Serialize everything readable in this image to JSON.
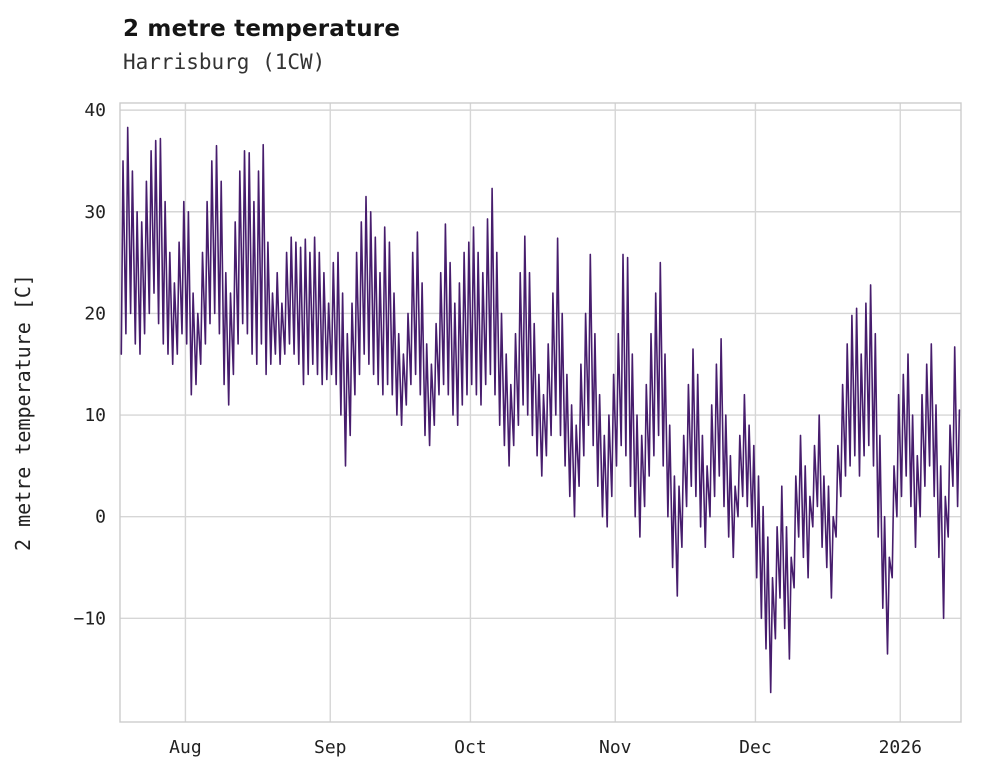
{
  "header": {
    "title": "2 metre temperature",
    "subtitle": "Harrisburg (1CW)"
  },
  "chart_data": {
    "type": "line",
    "title": "2 metre temperature",
    "subtitle": "Harrisburg (1CW)",
    "xlabel": "",
    "ylabel": "2 metre temperature [C]",
    "series_name": "2 metre temperature",
    "series_color": "#471d6d",
    "grid": true,
    "grid_color": "#d6d6d6",
    "frame_color": "#cccccc",
    "ylim": [
      -20.2,
      40.7
    ],
    "y_ticks": [
      40,
      30,
      20,
      10,
      0,
      -10
    ],
    "x_domain_days": [
      0,
      180
    ],
    "x_ticks": [
      {
        "label": "Aug",
        "day": 14
      },
      {
        "label": "Sep",
        "day": 45
      },
      {
        "label": "Oct",
        "day": 75
      },
      {
        "label": "Nov",
        "day": 106
      },
      {
        "label": "Dec",
        "day": 136
      },
      {
        "label": "2026",
        "day": 167
      }
    ],
    "daily_min_max_c": [
      [
        16,
        35
      ],
      [
        18,
        38.3
      ],
      [
        20,
        34
      ],
      [
        17,
        30
      ],
      [
        16,
        29
      ],
      [
        18,
        33
      ],
      [
        20,
        36
      ],
      [
        22,
        37
      ],
      [
        19,
        37.2
      ],
      [
        17,
        31
      ],
      [
        16,
        26
      ],
      [
        15,
        23
      ],
      [
        16,
        27
      ],
      [
        18,
        31
      ],
      [
        17,
        30
      ],
      [
        12,
        22
      ],
      [
        13,
        20
      ],
      [
        15,
        26
      ],
      [
        17,
        31
      ],
      [
        19,
        35
      ],
      [
        20,
        36.5
      ],
      [
        18,
        33
      ],
      [
        13,
        24
      ],
      [
        11,
        22
      ],
      [
        14,
        29
      ],
      [
        17,
        34
      ],
      [
        19,
        36
      ],
      [
        18,
        35.8
      ],
      [
        16,
        31
      ],
      [
        15,
        34
      ],
      [
        17,
        36.6
      ],
      [
        14,
        27
      ],
      [
        15,
        22
      ],
      [
        16,
        24
      ],
      [
        15,
        21
      ],
      [
        16,
        26
      ],
      [
        17,
        27.5
      ],
      [
        16,
        27
      ],
      [
        15,
        26.5
      ],
      [
        13,
        27.3
      ],
      [
        14,
        26
      ],
      [
        15,
        27.5
      ],
      [
        14,
        26
      ],
      [
        13,
        24
      ],
      [
        13.5,
        21
      ],
      [
        14,
        25
      ],
      [
        13,
        26
      ],
      [
        10,
        22
      ],
      [
        5,
        18
      ],
      [
        8,
        21
      ],
      [
        12,
        26
      ],
      [
        14,
        29
      ],
      [
        16,
        31.5
      ],
      [
        15,
        30
      ],
      [
        14,
        27.5
      ],
      [
        13,
        24
      ],
      [
        12,
        28.5
      ],
      [
        13,
        27
      ],
      [
        12,
        22
      ],
      [
        10,
        18
      ],
      [
        9,
        16
      ],
      [
        11,
        20
      ],
      [
        13,
        26
      ],
      [
        14,
        28
      ],
      [
        12,
        23
      ],
      [
        8,
        17
      ],
      [
        7,
        15
      ],
      [
        9,
        19
      ],
      [
        12,
        24
      ],
      [
        13,
        28.8
      ],
      [
        12,
        25
      ],
      [
        10,
        21
      ],
      [
        9,
        23
      ],
      [
        11,
        26
      ],
      [
        12,
        27
      ],
      [
        13,
        28.5
      ],
      [
        12,
        26
      ],
      [
        11,
        24
      ],
      [
        13,
        29.3
      ],
      [
        14,
        32.3
      ],
      [
        12,
        26
      ],
      [
        9,
        20
      ],
      [
        7,
        16
      ],
      [
        5,
        13
      ],
      [
        7,
        18
      ],
      [
        9,
        24
      ],
      [
        11,
        27.6
      ],
      [
        10,
        24
      ],
      [
        8,
        19
      ],
      [
        6,
        14
      ],
      [
        4,
        12
      ],
      [
        6,
        17
      ],
      [
        8,
        22
      ],
      [
        10,
        27.4
      ],
      [
        8,
        20
      ],
      [
        5,
        14
      ],
      [
        2,
        11
      ],
      [
        0,
        9
      ],
      [
        3,
        15
      ],
      [
        6,
        20
      ],
      [
        9,
        25.8
      ],
      [
        7,
        18
      ],
      [
        3,
        12
      ],
      [
        0,
        8
      ],
      [
        -1,
        10
      ],
      [
        2,
        14
      ],
      [
        5,
        18
      ],
      [
        7,
        25.8
      ],
      [
        6,
        25.5
      ],
      [
        3,
        16
      ],
      [
        0,
        10
      ],
      [
        -2,
        8
      ],
      [
        1,
        13
      ],
      [
        4,
        18
      ],
      [
        6,
        22
      ],
      [
        8,
        25
      ],
      [
        5,
        16
      ],
      [
        0,
        9
      ],
      [
        -5,
        4
      ],
      [
        -7.8,
        3
      ],
      [
        -3,
        8
      ],
      [
        1,
        13
      ],
      [
        3,
        16.5
      ],
      [
        2,
        14
      ],
      [
        -1,
        8
      ],
      [
        -3,
        5
      ],
      [
        0,
        11
      ],
      [
        2,
        15
      ],
      [
        4,
        17.5
      ],
      [
        1,
        10
      ],
      [
        -2,
        6
      ],
      [
        -4,
        3
      ],
      [
        0,
        8
      ],
      [
        2,
        12
      ],
      [
        1,
        9
      ],
      [
        -1,
        7
      ],
      [
        -6,
        4
      ],
      [
        -10,
        1
      ],
      [
        -13,
        -2
      ],
      [
        -17.3,
        -6
      ],
      [
        -12,
        -1
      ],
      [
        -8,
        3
      ],
      [
        -11,
        -1
      ],
      [
        -14,
        -4
      ],
      [
        -7,
        4
      ],
      [
        -2,
        8
      ],
      [
        -4,
        5
      ],
      [
        -6,
        2
      ],
      [
        -1,
        7
      ],
      [
        1,
        10
      ],
      [
        -3,
        4
      ],
      [
        -5,
        3
      ],
      [
        -8,
        0
      ],
      [
        -2,
        7
      ],
      [
        2,
        13
      ],
      [
        4,
        17
      ],
      [
        5,
        19.8
      ],
      [
        6,
        20.5
      ],
      [
        4,
        16
      ],
      [
        6,
        21
      ],
      [
        7,
        22.8
      ],
      [
        5,
        18
      ],
      [
        -2,
        8
      ],
      [
        -9,
        0
      ],
      [
        -13.5,
        -4
      ],
      [
        -6,
        5
      ],
      [
        0,
        12
      ],
      [
        2,
        14
      ],
      [
        4,
        16
      ],
      [
        1,
        10
      ],
      [
        -3,
        6
      ],
      [
        0,
        12
      ],
      [
        3,
        15
      ],
      [
        5,
        17
      ],
      [
        2,
        11
      ],
      [
        -4,
        5
      ],
      [
        -10,
        2
      ],
      [
        -2,
        9
      ],
      [
        3,
        16.7
      ],
      [
        1,
        10.5
      ]
    ]
  }
}
